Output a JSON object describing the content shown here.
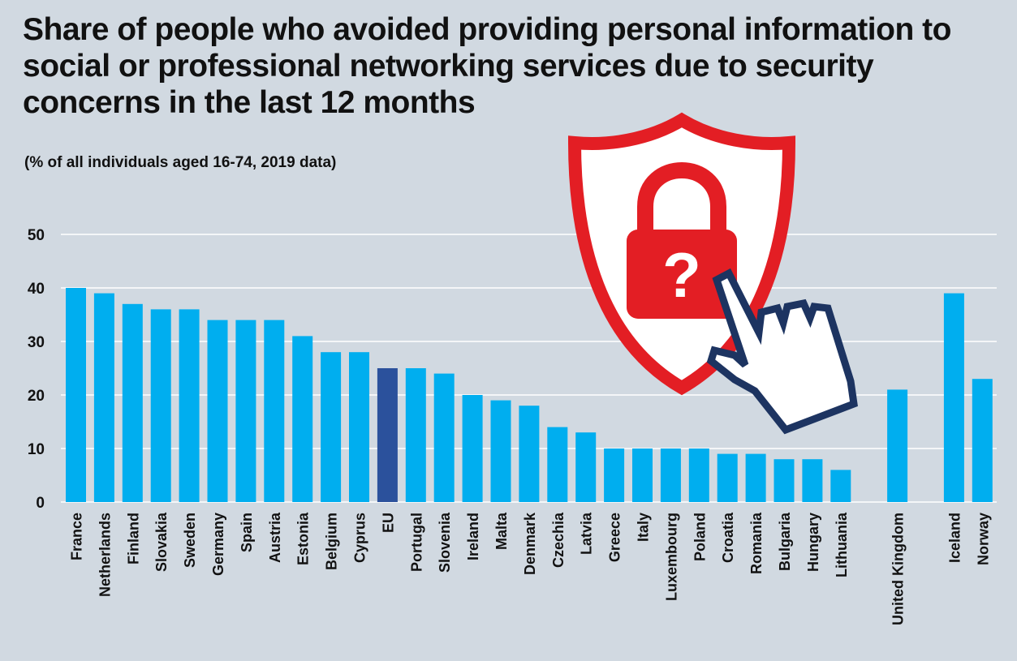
{
  "chart_data": {
    "type": "bar",
    "title": "Share of people who avoided providing personal information to social or professional networking services due to security concerns in the last 12 months",
    "subtitle": "(% of all individuals aged 16-74, 2019 data)",
    "xlabel": "",
    "ylabel": "",
    "ylim": [
      0,
      50
    ],
    "yticks": [
      "0",
      "10",
      "20",
      "30",
      "40",
      "50"
    ],
    "grid": true,
    "colors": {
      "default": "#00aeef",
      "highlight": "#2b519c"
    },
    "categories": [
      "France",
      "Netherlands",
      "Finland",
      "Slovakia",
      "Sweden",
      "Germany",
      "Spain",
      "Austria",
      "Estonia",
      "Belgium",
      "Cyprus",
      "EU",
      "Portugal",
      "Slovenia",
      "Ireland",
      "Malta",
      "Denmark",
      "Czechia",
      "Latvia",
      "Greece",
      "Italy",
      "Luxembourg",
      "Poland",
      "Croatia",
      "Romania",
      "Bulgaria",
      "Hungary",
      "Lithuania",
      "United Kingdom",
      "Iceland",
      "Norway"
    ],
    "values": [
      40,
      39,
      37,
      36,
      36,
      34,
      34,
      34,
      31,
      28,
      28,
      25,
      25,
      24,
      20,
      19,
      18,
      14,
      13,
      10,
      10,
      10,
      10,
      9,
      9,
      8,
      8,
      6,
      21,
      39,
      23
    ],
    "highlight": [
      "EU"
    ]
  },
  "illustration": {
    "icons": [
      "shield-icon",
      "padlock-question-icon",
      "hand-cursor-icon"
    ],
    "colors": {
      "shield": "#e31e24",
      "cursor_outline": "#1d3461"
    }
  }
}
